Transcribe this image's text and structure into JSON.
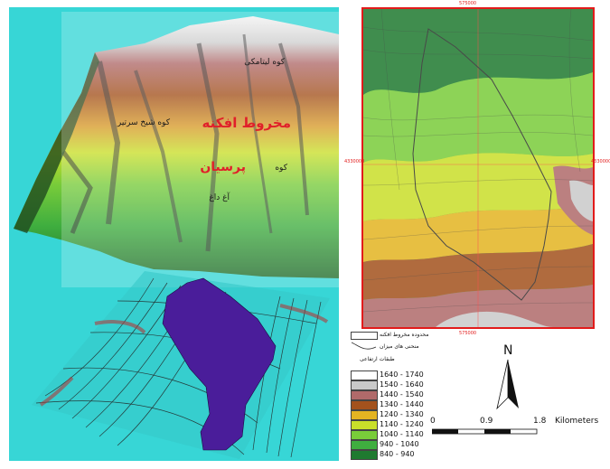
{
  "left_view": {
    "labels": [
      {
        "key": "kuh1",
        "text": "کوه لیتامکی",
        "color": "#1a1a1a",
        "size": 9
      },
      {
        "key": "cone",
        "text": "مخروط افکنه",
        "color": "#e0202a",
        "size": 15
      },
      {
        "key": "kuh2",
        "text": "کوه شیخ سرتیر",
        "color": "#1a1a1a",
        "size": 9
      },
      {
        "key": "parsian",
        "text": "پرسیان",
        "color": "#e0202a",
        "size": 14
      },
      {
        "key": "kuh3",
        "text": "کوه",
        "color": "#1a1a1a",
        "size": 9
      },
      {
        "key": "aghdagh",
        "text": "آغ داغ",
        "color": "#1a1a1a",
        "size": 9
      }
    ]
  },
  "map": {
    "coord_top": "575000",
    "coord_bottom": "575000",
    "coord_left": "4330000",
    "coord_right": "4330000"
  },
  "legend": {
    "boundary_label": "محدوده مخروط افکنه",
    "contours_label": "منحنی های میزان",
    "classes_title": "طبقات ارتفاعی",
    "classes": [
      {
        "range": "1640 - 1740",
        "color": "#ffffff"
      },
      {
        "range": "1540 - 1640",
        "color": "#c9c9c9"
      },
      {
        "range": "1440 - 1540",
        "color": "#b06a6a"
      },
      {
        "range": "1340 - 1440",
        "color": "#a3521d"
      },
      {
        "range": "1240 - 1340",
        "color": "#e3b422"
      },
      {
        "range": "1140 - 1240",
        "color": "#c9df2a"
      },
      {
        "range": "1040 - 1140",
        "color": "#79cc3a"
      },
      {
        "range": "940 - 1040",
        "color": "#3fae3f"
      },
      {
        "range": "840 - 940",
        "color": "#1f7a30"
      }
    ]
  },
  "north": {
    "label": "N"
  },
  "scale": {
    "labels": [
      "0",
      "0.9",
      "1.8"
    ],
    "unit": "Kilometers"
  }
}
